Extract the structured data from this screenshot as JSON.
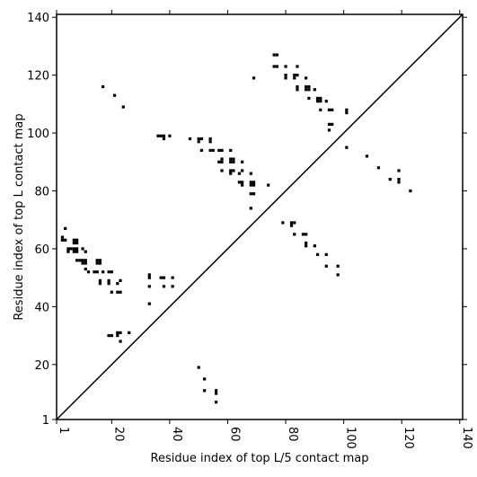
{
  "chart_data": {
    "type": "scatter",
    "title": "",
    "xlabel": "Residue index of top L/5 contact map",
    "ylabel": "Residue index of top L contact map",
    "xlim": [
      1,
      141
    ],
    "ylim": [
      1,
      141
    ],
    "xticks": [
      1,
      20,
      40,
      60,
      80,
      100,
      120,
      140
    ],
    "yticks": [
      1,
      20,
      40,
      60,
      80,
      100,
      120,
      140
    ],
    "xtick_labels": [
      "1",
      "20",
      "40",
      "60",
      "80",
      "100",
      "120",
      "140"
    ],
    "ytick_labels": [
      "1",
      "20",
      "40",
      "60",
      "80",
      "100",
      "120",
      "140"
    ],
    "diagonal_line": [
      [
        1,
        1
      ],
      [
        141,
        141
      ]
    ],
    "marker_color": "#000000",
    "grid": false,
    "series": [
      {
        "name": "",
        "points": [
          [
            3,
            63
          ],
          [
            3,
            64
          ],
          [
            4,
            67
          ],
          [
            4,
            63
          ],
          [
            5,
            60
          ],
          [
            5,
            59
          ],
          [
            6,
            60
          ],
          [
            7,
            62
          ],
          [
            7,
            63
          ],
          [
            8,
            62
          ],
          [
            8,
            63
          ],
          [
            7,
            60
          ],
          [
            8,
            60
          ],
          [
            7,
            59
          ],
          [
            8,
            59
          ],
          [
            8,
            56
          ],
          [
            9,
            56
          ],
          [
            10,
            60
          ],
          [
            11,
            59
          ],
          [
            10,
            56
          ],
          [
            11,
            56
          ],
          [
            10,
            55
          ],
          [
            11,
            55
          ],
          [
            11,
            53
          ],
          [
            12,
            52
          ],
          [
            15,
            56
          ],
          [
            16,
            56
          ],
          [
            15,
            55
          ],
          [
            16,
            55
          ],
          [
            14,
            52
          ],
          [
            15,
            52
          ],
          [
            17,
            52
          ],
          [
            16,
            49
          ],
          [
            16,
            48
          ],
          [
            19,
            52
          ],
          [
            20,
            52
          ],
          [
            19,
            49
          ],
          [
            19,
            48
          ],
          [
            20,
            45
          ],
          [
            23,
            49
          ],
          [
            22,
            48
          ],
          [
            22,
            45
          ],
          [
            23,
            45
          ],
          [
            19,
            30
          ],
          [
            20,
            30
          ],
          [
            22,
            31
          ],
          [
            22,
            30
          ],
          [
            23,
            31
          ],
          [
            23,
            28
          ],
          [
            26,
            31
          ],
          [
            33,
            51
          ],
          [
            33,
            50
          ],
          [
            33,
            47
          ],
          [
            33,
            41
          ],
          [
            37,
            50
          ],
          [
            38,
            50
          ],
          [
            38,
            47
          ],
          [
            41,
            50
          ],
          [
            41,
            47
          ],
          [
            36,
            99
          ],
          [
            37,
            99
          ],
          [
            38,
            99
          ],
          [
            38,
            98
          ],
          [
            40,
            99
          ],
          [
            47,
            98
          ],
          [
            50,
            98
          ],
          [
            50,
            97
          ],
          [
            51,
            98
          ],
          [
            51,
            94
          ],
          [
            54,
            98
          ],
          [
            54,
            97
          ],
          [
            54,
            94
          ],
          [
            55,
            94
          ],
          [
            57,
            94
          ],
          [
            58,
            94
          ],
          [
            57,
            90
          ],
          [
            58,
            90
          ],
          [
            58,
            91
          ],
          [
            58,
            87
          ],
          [
            61,
            94
          ],
          [
            61,
            91
          ],
          [
            62,
            91
          ],
          [
            61,
            90
          ],
          [
            62,
            90
          ],
          [
            61,
            87
          ],
          [
            62,
            87
          ],
          [
            61,
            86
          ],
          [
            64,
            86
          ],
          [
            64,
            83
          ],
          [
            65,
            90
          ],
          [
            65,
            87
          ],
          [
            65,
            83
          ],
          [
            65,
            82
          ],
          [
            68,
            86
          ],
          [
            68,
            83
          ],
          [
            69,
            83
          ],
          [
            68,
            82
          ],
          [
            69,
            82
          ],
          [
            68,
            79
          ],
          [
            69,
            79
          ],
          [
            68,
            74
          ],
          [
            74,
            82
          ],
          [
            50,
            19
          ],
          [
            52,
            15
          ],
          [
            52,
            11
          ],
          [
            56,
            11
          ],
          [
            56,
            10
          ],
          [
            56,
            7
          ],
          [
            17,
            116
          ],
          [
            21,
            113
          ],
          [
            24,
            109
          ],
          [
            69,
            119
          ],
          [
            76,
            127
          ],
          [
            77,
            127
          ],
          [
            76,
            123
          ],
          [
            77,
            123
          ],
          [
            80,
            123
          ],
          [
            80,
            120
          ],
          [
            80,
            119
          ],
          [
            83,
            120
          ],
          [
            83,
            119
          ],
          [
            84,
            123
          ],
          [
            84,
            120
          ],
          [
            84,
            116
          ],
          [
            84,
            115
          ],
          [
            87,
            119
          ],
          [
            87,
            116
          ],
          [
            88,
            116
          ],
          [
            87,
            115
          ],
          [
            88,
            115
          ],
          [
            88,
            112
          ],
          [
            90,
            115
          ],
          [
            91,
            112
          ],
          [
            92,
            112
          ],
          [
            91,
            111
          ],
          [
            92,
            111
          ],
          [
            92,
            108
          ],
          [
            94,
            111
          ],
          [
            95,
            108
          ],
          [
            96,
            108
          ],
          [
            95,
            103
          ],
          [
            96,
            103
          ],
          [
            95,
            101
          ],
          [
            101,
            108
          ],
          [
            101,
            107
          ],
          [
            101,
            95
          ],
          [
            108,
            92
          ],
          [
            112,
            88
          ],
          [
            116,
            84
          ],
          [
            119,
            87
          ],
          [
            119,
            84
          ],
          [
            119,
            83
          ],
          [
            123,
            80
          ],
          [
            79,
            69
          ],
          [
            82,
            69
          ],
          [
            82,
            68
          ],
          [
            83,
            69
          ],
          [
            83,
            65
          ],
          [
            86,
            65
          ],
          [
            87,
            65
          ],
          [
            87,
            62
          ],
          [
            87,
            61
          ],
          [
            90,
            61
          ],
          [
            91,
            58
          ],
          [
            94,
            58
          ],
          [
            94,
            54
          ],
          [
            98,
            54
          ],
          [
            98,
            51
          ]
        ]
      }
    ]
  }
}
